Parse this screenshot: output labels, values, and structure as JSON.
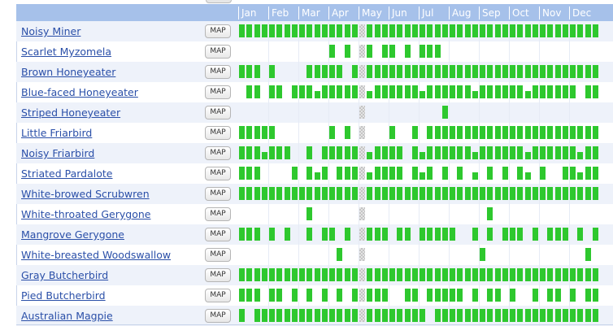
{
  "months": [
    "Jan",
    "Feb",
    "Mar",
    "Apr",
    "May",
    "Jun",
    "Jul",
    "Aug",
    "Sep",
    "Oct",
    "Nov",
    "Dec"
  ],
  "map_label": "MAP",
  "weeks_per_month": 4,
  "highlight_week": 16,
  "colors": {
    "presence": "#2ec82e",
    "header": "#a6c1ea",
    "link": "#2a4fa8",
    "row_alt": "#eef2fa"
  },
  "species": [
    {
      "name": "Noisy Miner",
      "weeks": [
        1,
        1,
        1,
        1,
        1,
        1,
        1,
        1,
        1,
        1,
        1,
        1,
        1,
        1,
        1,
        1,
        0,
        1,
        1,
        1,
        1,
        1,
        1,
        1,
        1,
        1,
        1,
        1,
        1,
        1,
        1,
        1,
        1,
        1,
        1,
        1,
        1,
        1,
        1,
        1,
        1,
        1,
        1,
        1,
        1,
        1,
        1,
        1
      ]
    },
    {
      "name": "Scarlet Myzomela",
      "weeks": [
        0,
        0,
        0,
        0,
        0,
        0,
        0,
        0,
        0,
        0,
        0,
        0,
        1,
        0,
        1,
        0,
        0,
        1,
        0,
        1,
        1,
        0,
        1,
        0,
        1,
        1,
        1,
        0,
        0,
        0,
        0,
        0,
        0,
        0,
        0,
        0,
        0,
        0,
        0,
        0,
        0,
        0,
        0,
        0,
        0,
        0,
        0,
        0
      ]
    },
    {
      "name": "Brown Honeyeater",
      "weeks": [
        1,
        1,
        1,
        0,
        1,
        0,
        0,
        0,
        0,
        1,
        1,
        1,
        1,
        1,
        0,
        1,
        0,
        1,
        1,
        1,
        1,
        1,
        1,
        1,
        1,
        1,
        1,
        1,
        1,
        1,
        1,
        1,
        1,
        1,
        1,
        1,
        1,
        1,
        1,
        1,
        1,
        1,
        1,
        1,
        1,
        1,
        1,
        1
      ]
    },
    {
      "name": "Blue-faced Honeyeater",
      "weeks": [
        0,
        1,
        1,
        0,
        1,
        1,
        0,
        1,
        1,
        1,
        1,
        1,
        1,
        1,
        1,
        1,
        0,
        1,
        1,
        1,
        1,
        1,
        1,
        1,
        1,
        1,
        1,
        1,
        1,
        1,
        1,
        1,
        1,
        1,
        1,
        1,
        1,
        1,
        1,
        1,
        1,
        1,
        1,
        1,
        1,
        0,
        1,
        1
      ]
    },
    {
      "name": "Striped Honeyeater",
      "weeks": [
        0,
        0,
        0,
        0,
        0,
        0,
        0,
        0,
        0,
        0,
        0,
        0,
        0,
        0,
        0,
        0,
        0,
        0,
        0,
        0,
        0,
        0,
        0,
        0,
        0,
        0,
        0,
        1,
        0,
        0,
        0,
        0,
        0,
        0,
        0,
        0,
        0,
        0,
        0,
        0,
        0,
        0,
        0,
        0,
        0,
        0,
        0,
        0
      ]
    },
    {
      "name": "Little Friarbird",
      "weeks": [
        1,
        1,
        1,
        1,
        1,
        0,
        0,
        0,
        0,
        0,
        0,
        0,
        1,
        0,
        1,
        0,
        0,
        0,
        0,
        0,
        1,
        0,
        0,
        1,
        0,
        1,
        1,
        1,
        1,
        1,
        1,
        1,
        1,
        1,
        1,
        1,
        1,
        1,
        1,
        1,
        1,
        1,
        1,
        1,
        1,
        1,
        1,
        1
      ]
    },
    {
      "name": "Noisy Friarbird",
      "weeks": [
        1,
        1,
        1,
        1,
        1,
        1,
        1,
        0,
        0,
        1,
        0,
        1,
        1,
        1,
        1,
        1,
        0,
        1,
        1,
        1,
        1,
        1,
        0,
        1,
        1,
        1,
        1,
        1,
        1,
        1,
        1,
        1,
        1,
        1,
        1,
        1,
        1,
        1,
        1,
        1,
        1,
        1,
        1,
        1,
        1,
        1,
        1,
        1
      ]
    },
    {
      "name": "Striated Pardalote",
      "weeks": [
        1,
        1,
        1,
        0,
        0,
        0,
        0,
        1,
        0,
        1,
        1,
        1,
        0,
        1,
        1,
        1,
        0,
        1,
        1,
        1,
        1,
        1,
        0,
        1,
        1,
        1,
        0,
        1,
        0,
        1,
        0,
        1,
        0,
        1,
        0,
        1,
        0,
        1,
        1,
        0,
        1,
        0,
        0,
        1,
        1,
        1,
        1,
        1
      ]
    },
    {
      "name": "White-browed Scrubwren",
      "weeks": [
        1,
        1,
        1,
        1,
        1,
        1,
        1,
        1,
        1,
        1,
        1,
        1,
        1,
        1,
        1,
        1,
        0,
        1,
        1,
        1,
        1,
        1,
        1,
        1,
        1,
        1,
        1,
        1,
        1,
        1,
        1,
        1,
        1,
        1,
        1,
        1,
        1,
        1,
        1,
        1,
        1,
        1,
        1,
        1,
        1,
        1,
        1,
        1
      ]
    },
    {
      "name": "White-throated Gerygone",
      "weeks": [
        0,
        0,
        0,
        0,
        0,
        0,
        0,
        0,
        0,
        1,
        0,
        0,
        0,
        0,
        0,
        0,
        0,
        0,
        0,
        0,
        0,
        0,
        0,
        0,
        0,
        0,
        0,
        0,
        0,
        0,
        0,
        0,
        0,
        1,
        0,
        0,
        0,
        0,
        0,
        0,
        0,
        0,
        0,
        0,
        0,
        0,
        0,
        0
      ]
    },
    {
      "name": "Mangrove Gerygone",
      "weeks": [
        1,
        1,
        1,
        0,
        1,
        0,
        1,
        0,
        0,
        1,
        0,
        1,
        1,
        0,
        1,
        0,
        0,
        1,
        1,
        1,
        0,
        1,
        1,
        0,
        1,
        1,
        1,
        1,
        1,
        0,
        0,
        1,
        0,
        1,
        0,
        1,
        1,
        1,
        0,
        1,
        0,
        1,
        1,
        1,
        0,
        1,
        0,
        1
      ]
    },
    {
      "name": "White-breasted Woodswallow",
      "weeks": [
        0,
        0,
        0,
        0,
        0,
        0,
        0,
        0,
        0,
        0,
        0,
        0,
        0,
        1,
        0,
        0,
        0,
        0,
        0,
        0,
        0,
        0,
        0,
        0,
        0,
        0,
        0,
        0,
        0,
        0,
        0,
        0,
        1,
        0,
        0,
        0,
        0,
        0,
        0,
        0,
        0,
        0,
        0,
        0,
        0,
        0,
        1,
        0
      ]
    },
    {
      "name": "Gray Butcherbird",
      "weeks": [
        1,
        1,
        1,
        1,
        1,
        1,
        1,
        1,
        1,
        1,
        1,
        1,
        1,
        1,
        1,
        1,
        0,
        1,
        1,
        1,
        1,
        1,
        1,
        1,
        1,
        1,
        1,
        1,
        1,
        1,
        1,
        1,
        1,
        1,
        1,
        1,
        1,
        1,
        1,
        1,
        1,
        1,
        1,
        1,
        1,
        1,
        1,
        1
      ]
    },
    {
      "name": "Pied Butcherbird",
      "weeks": [
        1,
        1,
        1,
        0,
        1,
        1,
        0,
        1,
        0,
        1,
        0,
        1,
        0,
        1,
        0,
        1,
        0,
        1,
        1,
        1,
        0,
        0,
        1,
        1,
        0,
        1,
        1,
        1,
        1,
        1,
        0,
        1,
        0,
        1,
        1,
        0,
        1,
        0,
        0,
        1,
        0,
        1,
        1,
        0,
        1,
        0,
        1,
        1
      ]
    },
    {
      "name": "Australian Magpie",
      "weeks": [
        1,
        0,
        1,
        1,
        1,
        1,
        1,
        1,
        1,
        1,
        1,
        1,
        1,
        1,
        1,
        1,
        0,
        1,
        1,
        1,
        1,
        1,
        1,
        1,
        1,
        0,
        1,
        1,
        1,
        1,
        1,
        1,
        1,
        1,
        1,
        1,
        1,
        1,
        1,
        1,
        1,
        1,
        1,
        1,
        1,
        1,
        1,
        1
      ]
    }
  ]
}
